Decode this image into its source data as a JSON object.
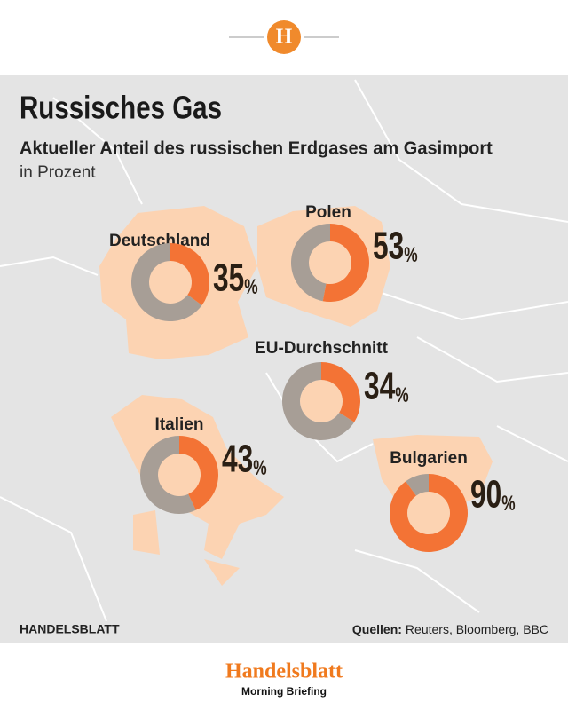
{
  "header": {
    "logo_letter": "H"
  },
  "chart_data": {
    "type": "donut",
    "title": "Russisches Gas",
    "subtitle": "Aktueller Anteil des russischen Erdgases am Gasimport",
    "unit": "in Prozent",
    "categories": [
      "Deutschland",
      "Polen",
      "EU-Durchschnitt",
      "Italien",
      "Bulgarien"
    ],
    "values": [
      35,
      53,
      34,
      43,
      90
    ],
    "value_labels": [
      "35%",
      "53%",
      "34%",
      "43%",
      "90%"
    ],
    "color": "#f37335",
    "rest_color": "#a79e96"
  },
  "footer": {
    "brand": "HANDELSBLATT",
    "sources_label": "Quellen:",
    "sources": "Reuters, Bloomberg, BBC",
    "logo": "Handelsblatt",
    "logo_sub": "Morning Briefing"
  }
}
